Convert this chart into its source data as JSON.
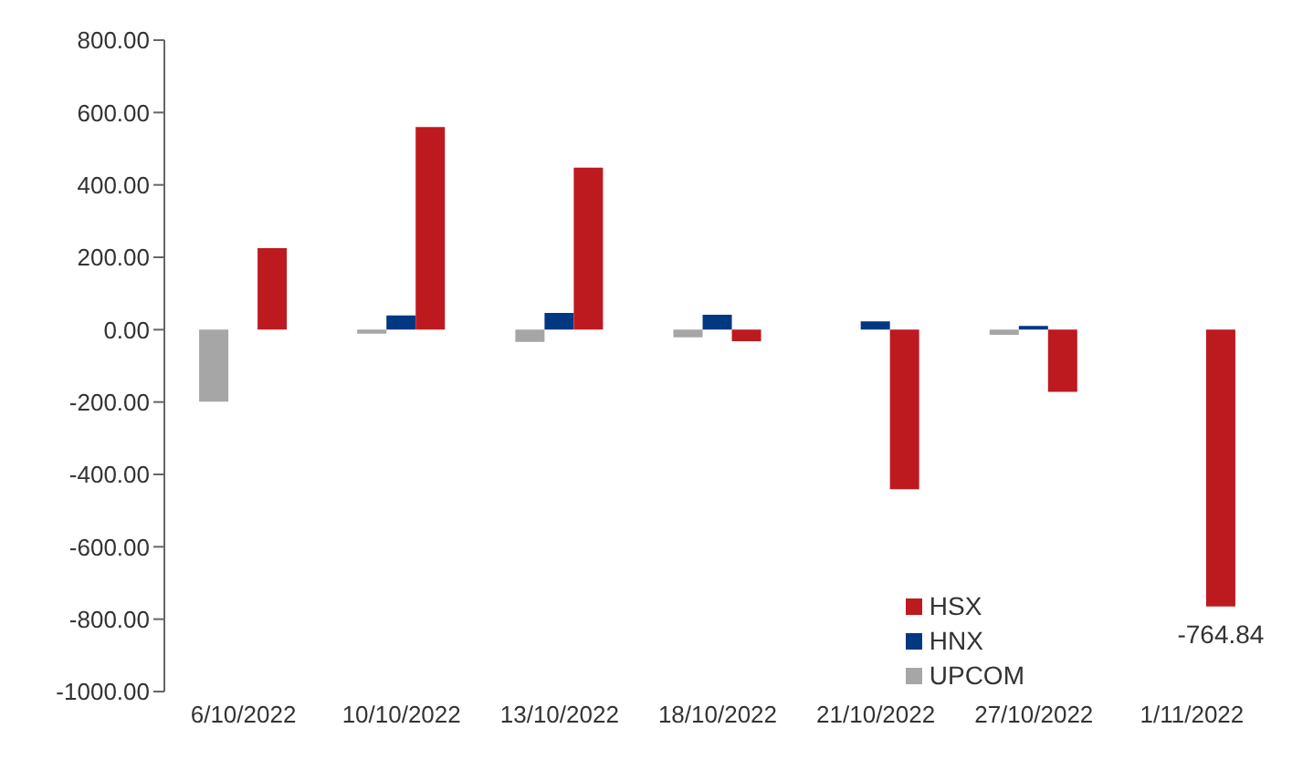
{
  "chart_data": {
    "type": "bar",
    "categories": [
      "6/10/2022",
      "10/10/2022",
      "13/10/2022",
      "18/10/2022",
      "21/10/2022",
      "27/10/2022",
      "1/11/2022"
    ],
    "series": [
      {
        "name": "UPCOM",
        "color": "#a6a6a6",
        "values": [
          -199,
          -11,
          -34,
          -21,
          null,
          -14,
          null
        ]
      },
      {
        "name": "HNX",
        "color": "#003882",
        "values": [
          null,
          39,
          46,
          41,
          23,
          10,
          null
        ]
      },
      {
        "name": "HSX",
        "color": "#bd1a20",
        "values": [
          225,
          560,
          448,
          -32,
          -441,
          -172,
          -764.84
        ],
        "value_labels": [
          null,
          null,
          null,
          null,
          null,
          null,
          "-764.84"
        ]
      }
    ],
    "ylim": [
      -1000,
      800
    ],
    "yticks": [
      {
        "value": -1000,
        "label": "-1000.00"
      },
      {
        "value": -800,
        "label": "-800.00"
      },
      {
        "value": -600,
        "label": "-600.00"
      },
      {
        "value": -400,
        "label": "-400.00"
      },
      {
        "value": -200,
        "label": "-200.00"
      },
      {
        "value": 0,
        "label": "0.00"
      },
      {
        "value": 200,
        "label": "200.00"
      },
      {
        "value": 400,
        "label": "400.00"
      },
      {
        "value": 600,
        "label": "600.00"
      },
      {
        "value": 800,
        "label": "800.00"
      }
    ],
    "grid": false,
    "legend": "bottom right"
  }
}
